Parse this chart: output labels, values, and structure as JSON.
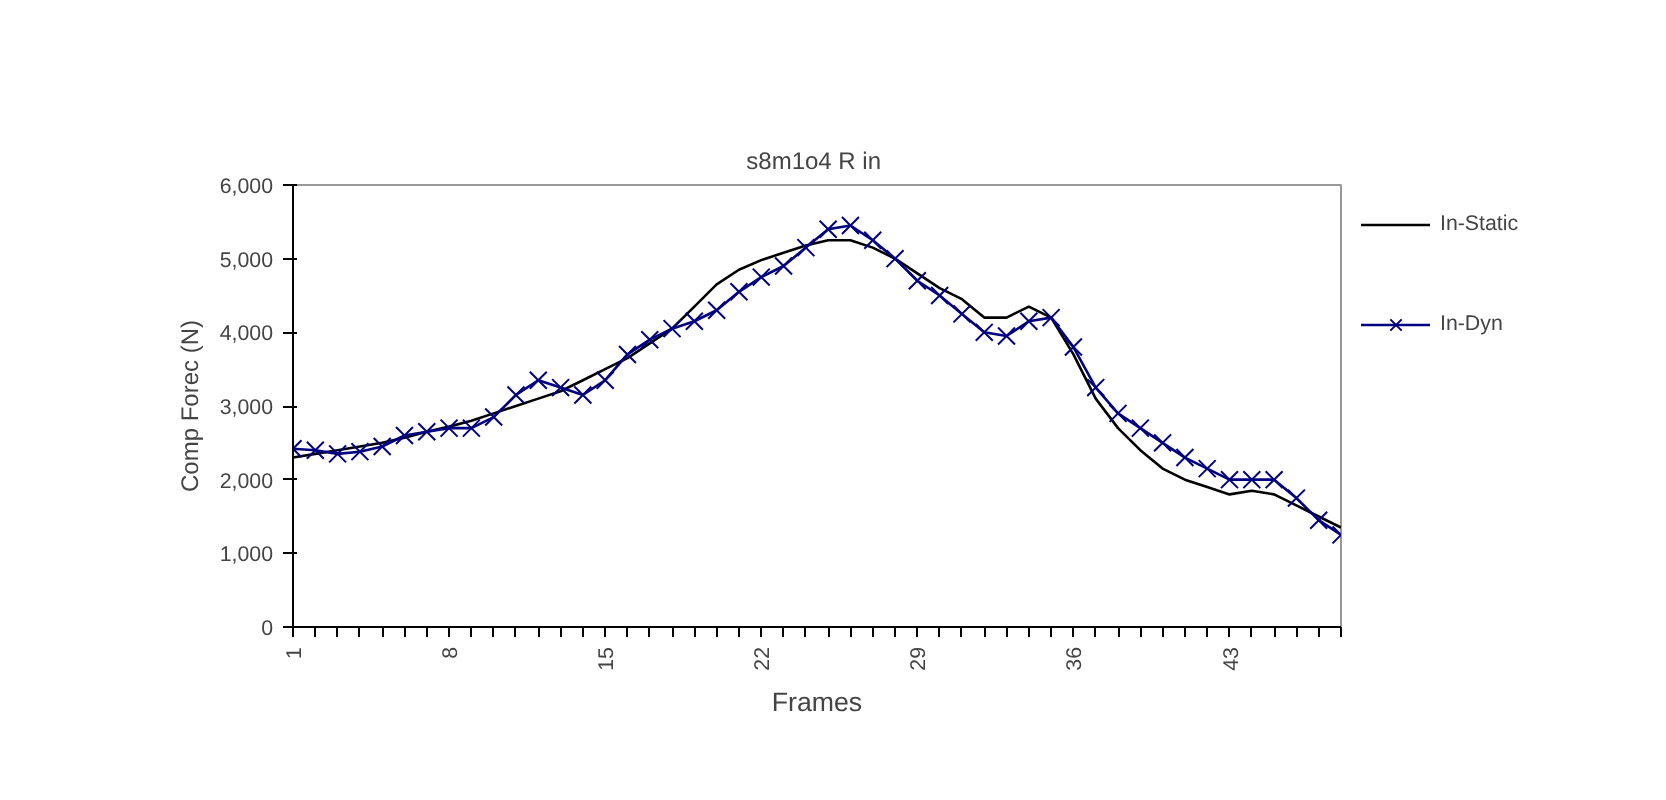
{
  "chart_data": {
    "type": "line",
    "title": "s8m1o4  R in",
    "xlabel": "Frames",
    "ylabel": "Comp Forec (N)",
    "x": [
      1,
      2,
      3,
      4,
      5,
      6,
      7,
      8,
      9,
      10,
      11,
      12,
      13,
      14,
      15,
      16,
      17,
      18,
      19,
      20,
      21,
      22,
      23,
      24,
      25,
      26,
      27,
      28,
      29,
      30,
      31,
      32,
      33,
      34,
      35,
      36,
      37,
      38,
      39,
      40,
      41,
      42,
      43,
      44,
      45,
      46,
      47,
      48
    ],
    "xlim": [
      1,
      48
    ],
    "xticks": [
      1,
      {
        "value": 2,
        "label": null
      },
      {
        "value": 3,
        "label": null
      },
      {
        "value": 4,
        "label": null
      },
      {
        "value": 5,
        "label": null
      },
      {
        "value": 6,
        "label": null
      },
      {
        "value": 7,
        "label": null
      },
      8,
      {
        "value": 9,
        "label": null
      },
      {
        "value": 10,
        "label": null
      },
      {
        "value": 11,
        "label": null
      },
      {
        "value": 12,
        "label": null
      },
      {
        "value": 13,
        "label": null
      },
      {
        "value": 14,
        "label": null
      },
      15,
      {
        "value": 16,
        "label": null
      },
      {
        "value": 17,
        "label": null
      },
      {
        "value": 18,
        "label": null
      },
      {
        "value": 19,
        "label": null
      },
      {
        "value": 20,
        "label": null
      },
      {
        "value": 21,
        "label": null
      },
      22,
      {
        "value": 23,
        "label": null
      },
      {
        "value": 24,
        "label": null
      },
      {
        "value": 25,
        "label": null
      },
      {
        "value": 26,
        "label": null
      },
      {
        "value": 27,
        "label": null
      },
      {
        "value": 28,
        "label": null
      },
      29,
      {
        "value": 30,
        "label": null
      },
      {
        "value": 31,
        "label": null
      },
      {
        "value": 32,
        "label": null
      },
      {
        "value": 33,
        "label": null
      },
      {
        "value": 34,
        "label": null
      },
      {
        "value": 35,
        "label": null
      },
      36,
      {
        "value": 37,
        "label": null
      },
      {
        "value": 38,
        "label": null
      },
      {
        "value": 39,
        "label": null
      },
      {
        "value": 40,
        "label": null
      },
      {
        "value": 41,
        "label": null
      },
      {
        "value": 42,
        "label": null
      },
      43,
      {
        "value": 44,
        "label": null
      },
      {
        "value": 45,
        "label": null
      },
      {
        "value": 46,
        "label": null
      },
      {
        "value": 47,
        "label": null
      },
      {
        "value": 48,
        "label": null
      }
    ],
    "ylim": [
      0,
      6000
    ],
    "yticks": [
      {
        "value": 0,
        "label": "0"
      },
      {
        "value": 1000,
        "label": "1,000"
      },
      {
        "value": 2000,
        "label": "2,000"
      },
      {
        "value": 3000,
        "label": "3,000"
      },
      {
        "value": 4000,
        "label": "4,000"
      },
      {
        "value": 5000,
        "label": "5,000"
      },
      {
        "value": 6000,
        "label": "6,000"
      }
    ],
    "grid": false,
    "legend": "top right",
    "series": [
      {
        "name": "In-Static",
        "color": "#000000",
        "marker": "none",
        "values": [
          2300,
          2350,
          2400,
          2450,
          2500,
          2570,
          2650,
          2720,
          2800,
          2900,
          3000,
          3100,
          3200,
          3350,
          3500,
          3650,
          3850,
          4050,
          4350,
          4650,
          4850,
          4980,
          5080,
          5180,
          5250,
          5250,
          5150,
          5000,
          4800,
          4600,
          4450,
          4200,
          4200,
          4350,
          4200,
          3700,
          3100,
          2700,
          2400,
          2150,
          2000,
          1900,
          1800,
          1850,
          1800,
          1650,
          1500,
          1350
        ]
      },
      {
        "name": "In-Dyn",
        "color": "#000080",
        "marker": "cross",
        "values": [
          2420,
          2400,
          2350,
          2380,
          2450,
          2600,
          2650,
          2700,
          2700,
          2850,
          3150,
          3350,
          3250,
          3150,
          3350,
          3700,
          3900,
          4050,
          4150,
          4300,
          4550,
          4750,
          4900,
          5150,
          5400,
          5450,
          5250,
          5000,
          4700,
          4500,
          4250,
          4000,
          3950,
          4150,
          4200,
          3800,
          3250,
          2900,
          2700,
          2500,
          2300,
          2150,
          2000,
          2000,
          2000,
          1750,
          1450,
          1250
        ]
      }
    ]
  }
}
